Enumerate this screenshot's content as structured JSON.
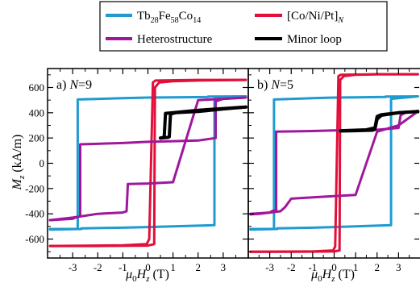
{
  "legend": {
    "entries": [
      {
        "id": "tb",
        "name": "Tb28Fe58Co14",
        "color": "#1f9bd0"
      },
      {
        "id": "cnp",
        "name": "[Co/Ni/Pt]N",
        "color": "#e0103a"
      },
      {
        "id": "het",
        "name": "Heterostructure",
        "color": "#a0179b"
      },
      {
        "id": "minor",
        "name": "Minor loop",
        "color": "#000000"
      }
    ]
  },
  "chart_data": [
    {
      "type": "line",
      "annotation_prefix": "a) ",
      "annotation_var": "N",
      "annotation_value": "=9",
      "xlim": [
        -4,
        4
      ],
      "ylim": [
        -750,
        750
      ],
      "xticks": [
        -3,
        -2,
        -1,
        0,
        1,
        2,
        3
      ],
      "yticks": [
        -600,
        -400,
        -200,
        0,
        200,
        400,
        600
      ],
      "ylabel": "Mz (kA/m)",
      "xlabel": "μ0Hz (T)",
      "series": [
        {
          "ref": "tb",
          "x": [
            -3.9,
            -2.8,
            -2.8,
            -1,
            0,
            1,
            2.4,
            2.4,
            3.9
          ],
          "y": [
            -520,
            -520,
            505,
            515,
            520,
            522,
            525,
            528,
            530
          ]
        },
        {
          "ref": "tb_b",
          "ref_color": "tb",
          "x": [
            3.9,
            2.65,
            2.65,
            1,
            0,
            -1,
            -2.65,
            -2.65,
            -3.9
          ],
          "y": [
            530,
            510,
            -490,
            -500,
            -505,
            -510,
            -515,
            -520,
            -525
          ]
        },
        {
          "ref": "cnp",
          "x": [
            -3.9,
            -2,
            0,
            0.25,
            0.28,
            0.45,
            1,
            2,
            3.9
          ],
          "y": [
            -655,
            -655,
            -652,
            -640,
            600,
            640,
            650,
            655,
            660
          ]
        },
        {
          "ref": "cnp_b",
          "ref_color": "cnp",
          "x": [
            3.9,
            2,
            0.3,
            0.2,
            0.05,
            -0.05,
            -1,
            -3.9
          ],
          "y": [
            660,
            660,
            655,
            640,
            -600,
            -640,
            -650,
            -655
          ]
        },
        {
          "ref": "het",
          "x": [
            -3.9,
            -3,
            -2.9,
            -2.7,
            -2.7,
            -1,
            0,
            1,
            2,
            2.7,
            2.7,
            3,
            3.9
          ],
          "y": [
            -450,
            -440,
            -430,
            -420,
            150,
            160,
            170,
            175,
            180,
            200,
            490,
            510,
            520
          ]
        },
        {
          "ref": "het_b",
          "ref_color": "het",
          "x": [
            3.9,
            3,
            2,
            1,
            0,
            -0.8,
            -0.85,
            -1,
            -2,
            -3,
            -3.9
          ],
          "y": [
            520,
            510,
            500,
            -150,
            -160,
            -165,
            -380,
            -390,
            -400,
            -430,
            -450
          ]
        },
        {
          "ref": "minor",
          "x": [
            0.5,
            0.8,
            0.85,
            0.9,
            1.1,
            2,
            3,
            3.9
          ],
          "y": [
            200,
            205,
            210,
            390,
            400,
            410,
            430,
            445
          ]
        },
        {
          "ref": "minor_b",
          "ref_color": "minor",
          "x": [
            3.9,
            2,
            1,
            0.7,
            0.65,
            0.6,
            0.5
          ],
          "y": [
            445,
            420,
            400,
            395,
            210,
            205,
            200
          ]
        }
      ]
    },
    {
      "type": "line",
      "annotation_prefix": "b) ",
      "annotation_var": "N",
      "annotation_value": "=5",
      "xlim": [
        -4,
        4
      ],
      "ylim": [
        -750,
        750
      ],
      "xticks": [
        -3,
        -2,
        -1,
        0,
        1,
        2,
        3
      ],
      "yticks": [
        -600,
        -400,
        -200,
        0,
        200,
        400,
        600
      ],
      "xlabel": "μ0Hz (T)",
      "series": [
        {
          "ref": "tb",
          "x": [
            -3.9,
            -2.8,
            -2.8,
            -1,
            0,
            1,
            2.4,
            2.4,
            3.9
          ],
          "y": [
            -520,
            -520,
            505,
            515,
            520,
            522,
            525,
            528,
            530
          ]
        },
        {
          "ref": "tb_b",
          "ref_color": "tb",
          "x": [
            3.9,
            2.65,
            2.65,
            1,
            0,
            -1,
            -2.65,
            -2.65,
            -3.9
          ],
          "y": [
            530,
            510,
            -490,
            -500,
            -505,
            -510,
            -515,
            -520,
            -525
          ]
        },
        {
          "ref": "cnp",
          "x": [
            -3.9,
            -2,
            0,
            0.25,
            0.28,
            0.45,
            1,
            2,
            3.9
          ],
          "y": [
            -700,
            -700,
            -698,
            -690,
            660,
            690,
            700,
            705,
            705
          ]
        },
        {
          "ref": "cnp_b",
          "ref_color": "cnp",
          "x": [
            3.9,
            2,
            0.3,
            0.2,
            0.05,
            -0.05,
            -1,
            -3.9
          ],
          "y": [
            705,
            705,
            700,
            690,
            -660,
            -690,
            -698,
            -700
          ]
        },
        {
          "ref": "het",
          "x": [
            -3.9,
            -3,
            -2.9,
            -2.7,
            -2.7,
            -1,
            0,
            1,
            2,
            3,
            3.1,
            3.3,
            3.9
          ],
          "y": [
            -400,
            -390,
            -380,
            -370,
            250,
            255,
            260,
            262,
            265,
            280,
            380,
            400,
            410
          ]
        },
        {
          "ref": "het_b",
          "ref_color": "het",
          "x": [
            3.9,
            3,
            2,
            1,
            0,
            -1,
            -2,
            -2.3,
            -2.5,
            -3,
            -3.5,
            -3.9
          ],
          "y": [
            410,
            300,
            250,
            -250,
            -260,
            -270,
            -280,
            -350,
            -380,
            -390,
            -400,
            -405
          ]
        },
        {
          "ref": "minor",
          "x": [
            0.3,
            1,
            1.8,
            1.9,
            2.0,
            2.2,
            3,
            3.9
          ],
          "y": [
            255,
            258,
            262,
            270,
            350,
            380,
            400,
            410
          ]
        },
        {
          "ref": "minor_b",
          "ref_color": "minor",
          "x": [
            3.9,
            3,
            2.2,
            2.0,
            1.9,
            1.5,
            0.3
          ],
          "y": [
            410,
            400,
            385,
            370,
            280,
            265,
            258
          ]
        }
      ]
    }
  ]
}
